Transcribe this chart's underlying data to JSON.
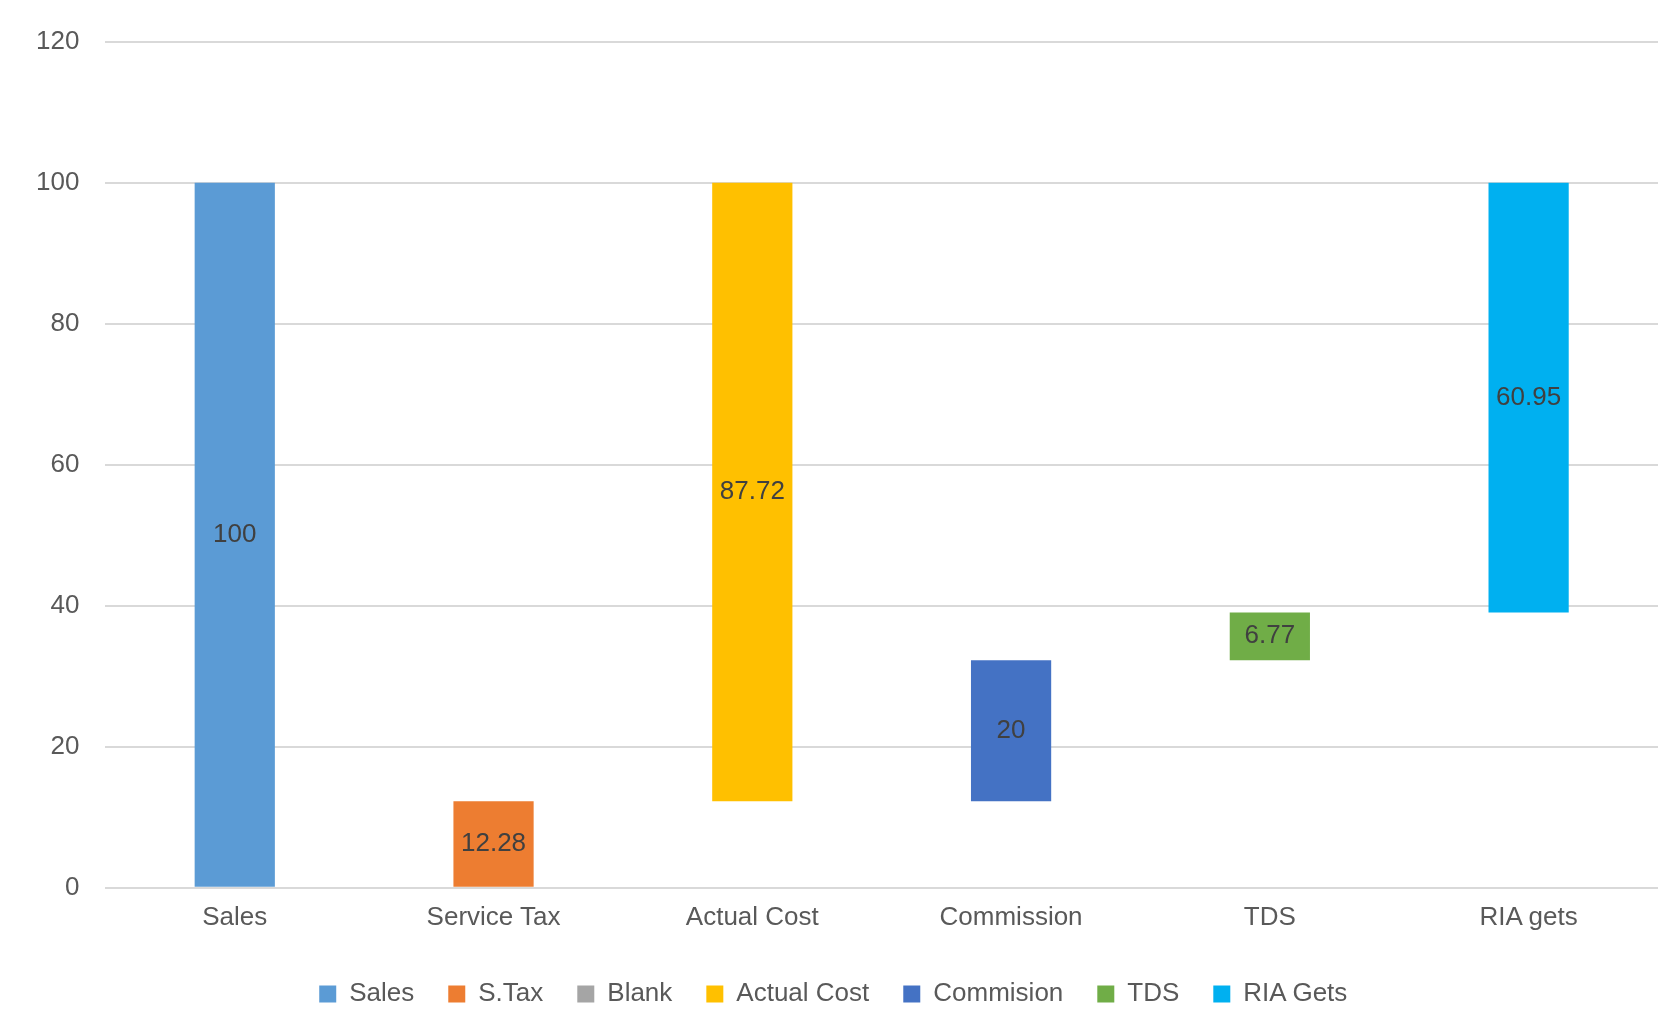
{
  "chart_data": {
    "type": "bar",
    "categories": [
      "Sales",
      "Service Tax",
      "Actual Cost",
      "Commission",
      "TDS",
      "RIA gets"
    ],
    "series": [
      {
        "name": "Sales",
        "color": "#5b9bd5",
        "values": [
          100,
          null,
          null,
          null,
          null,
          null
        ],
        "base": [
          0,
          null,
          null,
          null,
          null,
          null
        ]
      },
      {
        "name": "S.Tax",
        "color": "#ed7d31",
        "values": [
          null,
          12.28,
          null,
          null,
          null,
          null
        ],
        "base": [
          null,
          0,
          null,
          null,
          null,
          null
        ]
      },
      {
        "name": "Blank",
        "color": "#a5a5a5",
        "values": [
          null,
          null,
          null,
          null,
          null,
          null
        ]
      },
      {
        "name": "Actual Cost",
        "color": "#ffc000",
        "values": [
          null,
          null,
          87.72,
          null,
          null,
          null
        ],
        "base": [
          null,
          null,
          12.28,
          null,
          null,
          null
        ]
      },
      {
        "name": "Commision",
        "color": "#4472c4",
        "values": [
          null,
          null,
          null,
          20,
          null,
          null
        ],
        "base": [
          null,
          null,
          null,
          12.28,
          null,
          null
        ]
      },
      {
        "name": "TDS",
        "color": "#70ad47",
        "values": [
          null,
          null,
          null,
          null,
          6.77,
          null
        ],
        "base": [
          null,
          null,
          null,
          null,
          32.28,
          null
        ]
      },
      {
        "name": "RIA Gets",
        "color": "#00b0f0",
        "values": [
          null,
          null,
          null,
          null,
          null,
          60.95
        ],
        "base": [
          null,
          null,
          null,
          null,
          null,
          39.05
        ]
      }
    ],
    "ylim": [
      0,
      120
    ],
    "yticks": [
      0,
      20,
      40,
      60,
      80,
      100,
      120
    ],
    "grid": "y",
    "legend": "bottom",
    "data_labels": true
  }
}
